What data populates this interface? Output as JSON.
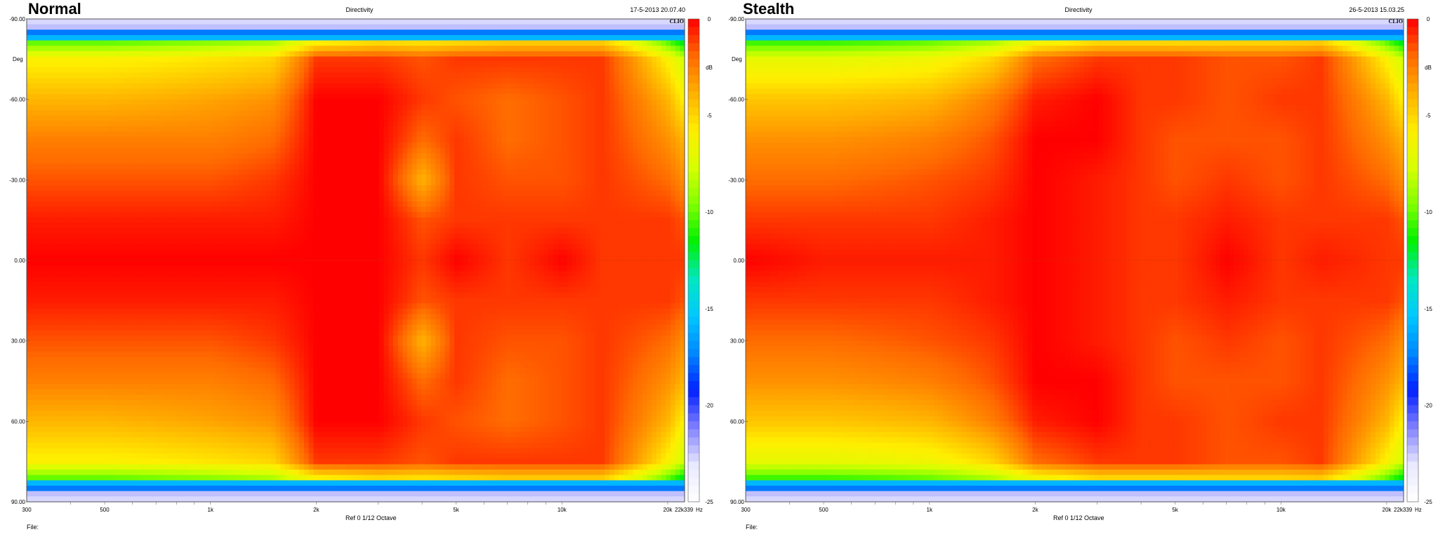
{
  "chart_data": [
    {
      "type": "heatmap",
      "panel_title": "Normal",
      "title": "Directivity",
      "timestamp": "17-5-2013 20.07.40",
      "logo": "CLIO",
      "x_tick_labels": [
        "300",
        "500",
        "1k",
        "2k",
        "5k",
        "10k",
        "20k",
        "22k339"
      ],
      "x_ticks_hz": [
        300,
        500,
        1000,
        2000,
        5000,
        10000,
        20000,
        22339
      ],
      "x_unit": "Hz",
      "xlim": [
        300,
        22339
      ],
      "x_scale": "log",
      "y_tick_labels": [
        "-90.00",
        "-60.00",
        "-30.00",
        "0.00",
        "30.00",
        "60.00",
        "90.00"
      ],
      "y_ticks": [
        -90,
        -60,
        -30,
        0,
        30,
        60,
        90
      ],
      "ylim": [
        -90,
        90
      ],
      "ylabel": "Deg",
      "colorbar": {
        "label": "dB",
        "ticks": [
          0,
          -5,
          -10,
          -15,
          -20,
          -25
        ],
        "tick_labels": [
          "0",
          "-5",
          "-10",
          "-15",
          "-20",
          "-25"
        ],
        "range": [
          -25,
          0
        ],
        "colors": [
          "#ff0000",
          "#ff6a00",
          "#ffb000",
          "#ffee00",
          "#d8ff00",
          "#80ff00",
          "#00f000",
          "#00e8c0",
          "#00c8ff",
          "#0088ff",
          "#0020ff",
          "#8080ff",
          "#e8e8ff",
          "#ffffff"
        ]
      },
      "bottom_label": "Ref 0  1/12 Octave",
      "file_label": "File:",
      "angles": [
        -90,
        -75,
        -60,
        -45,
        -30,
        -15,
        0,
        15,
        30,
        45,
        60,
        75,
        90
      ],
      "freqs_hz": [
        300,
        500,
        1000,
        1500,
        2000,
        3000,
        4000,
        5000,
        7000,
        10000,
        13000,
        20000,
        22339
      ],
      "values_db": [
        [
          -16,
          -16,
          -15,
          -14,
          -13,
          -11,
          -11,
          -11,
          -10,
          -10,
          -10,
          -16,
          -18
        ],
        [
          -6,
          -6,
          -5.5,
          -5,
          -1,
          -1,
          -1.5,
          -1,
          -1,
          -1,
          -1,
          -6,
          -8
        ],
        [
          -4,
          -4,
          -3.5,
          -3,
          0,
          0,
          -1,
          -1.5,
          -2,
          -1.5,
          -1,
          -4,
          -6
        ],
        [
          -2.5,
          -2.5,
          -2.5,
          -2,
          0,
          0,
          -2,
          -1,
          -2,
          -1.5,
          -1,
          -3,
          -4
        ],
        [
          -1.5,
          -1.5,
          -1.5,
          -1,
          0,
          0,
          -4,
          -1,
          -1.5,
          -1.5,
          -1,
          -2,
          -3
        ],
        [
          -0.5,
          -0.5,
          -0.5,
          -0.5,
          0,
          0,
          -1.5,
          -1,
          -1,
          -1,
          -1,
          -1,
          -1.5
        ],
        [
          0,
          0,
          0,
          0,
          0,
          0,
          -1,
          0,
          -1,
          0,
          -1,
          -1,
          -1
        ],
        [
          -0.5,
          -0.5,
          -0.5,
          -0.5,
          0,
          0,
          -1.5,
          -1,
          -1,
          -1,
          -1,
          -1,
          -1.5
        ],
        [
          -1.5,
          -1.5,
          -1.5,
          -1,
          0,
          0,
          -4,
          -1,
          -1.5,
          -1.5,
          -1,
          -2,
          -3
        ],
        [
          -2.5,
          -2.5,
          -2.5,
          -2,
          0,
          0,
          -2,
          -1,
          -2,
          -1.5,
          -1,
          -3,
          -4
        ],
        [
          -4,
          -4,
          -3.5,
          -3,
          0,
          0,
          -1,
          -1.5,
          -2,
          -1.5,
          -1,
          -4,
          -6
        ],
        [
          -6,
          -6,
          -5.5,
          -5,
          -1,
          -1,
          -1.5,
          -1,
          -1,
          -1,
          -1,
          -6,
          -8
        ],
        [
          -16,
          -16,
          -15,
          -14,
          -13,
          -11,
          -11,
          -11,
          -10,
          -10,
          -10,
          -16,
          -18
        ]
      ]
    },
    {
      "type": "heatmap",
      "panel_title": "Stealth",
      "title": "Directivity",
      "timestamp": "26-5-2013 15.03.25",
      "logo": "CLIO",
      "x_tick_labels": [
        "300",
        "500",
        "1k",
        "2k",
        "5k",
        "10k",
        "20k",
        "22k339"
      ],
      "x_ticks_hz": [
        300,
        500,
        1000,
        2000,
        5000,
        10000,
        20000,
        22339
      ],
      "x_unit": "Hz",
      "xlim": [
        300,
        22339
      ],
      "x_scale": "log",
      "y_tick_labels": [
        "-90.00",
        "-60.00",
        "-30.00",
        "0.00",
        "30.00",
        "60.00",
        "90.00"
      ],
      "y_ticks": [
        -90,
        -60,
        -30,
        0,
        30,
        60,
        90
      ],
      "ylim": [
        -90,
        90
      ],
      "ylabel": "Deg",
      "colorbar": {
        "label": "dB",
        "ticks": [
          0,
          -5,
          -10,
          -15,
          -20,
          -25
        ],
        "tick_labels": [
          "0",
          "-5",
          "-10",
          "-15",
          "-20",
          "-25"
        ],
        "range": [
          -25,
          0
        ],
        "colors": [
          "#ff0000",
          "#ff6a00",
          "#ffb000",
          "#ffee00",
          "#d8ff00",
          "#80ff00",
          "#00f000",
          "#00e8c0",
          "#00c8ff",
          "#0088ff",
          "#0020ff",
          "#8080ff",
          "#e8e8ff",
          "#ffffff"
        ]
      },
      "bottom_label": "Ref 0  1/12 Octave",
      "file_label": "File:",
      "angles": [
        -90,
        -75,
        -60,
        -45,
        -30,
        -15,
        0,
        15,
        30,
        45,
        60,
        75,
        90
      ],
      "freqs_hz": [
        300,
        500,
        1000,
        1500,
        2000,
        3000,
        4000,
        5000,
        7000,
        10000,
        13000,
        20000,
        22339
      ],
      "values_db": [
        [
          -16,
          -16,
          -15,
          -14,
          -13,
          -11,
          -11,
          -11,
          -10,
          -10,
          -10,
          -16,
          -18
        ],
        [
          -7,
          -7,
          -6.5,
          -5,
          -2,
          -1,
          -1,
          -1,
          -1.5,
          -1.5,
          -1,
          -6,
          -8
        ],
        [
          -4.5,
          -4.5,
          -4,
          -2.5,
          -0.5,
          0,
          -1,
          -1,
          -1.5,
          -1,
          -1,
          -4,
          -6
        ],
        [
          -3,
          -3,
          -2.5,
          -1.5,
          0,
          0,
          -1,
          -1.5,
          -1.5,
          -1.5,
          -1,
          -3,
          -4
        ],
        [
          -2,
          -2,
          -1.5,
          -1,
          0,
          -0.5,
          -1,
          -1.5,
          -1,
          -1.5,
          -1,
          -2,
          -3
        ],
        [
          -1,
          -1,
          -1,
          -0.5,
          0,
          -0.5,
          -1,
          -1,
          -0.5,
          -1,
          -1,
          -1,
          -1.5
        ],
        [
          0,
          -0.5,
          -0.5,
          -0.5,
          0,
          -0.5,
          -1,
          -1,
          0,
          -1,
          -0.5,
          -1,
          -1
        ],
        [
          -1,
          -1,
          -1,
          -0.5,
          0,
          -0.5,
          -1,
          -1,
          -0.5,
          -1,
          -1,
          -1,
          -1.5
        ],
        [
          -2,
          -2,
          -1.5,
          -1,
          0,
          -0.5,
          -1,
          -1.5,
          -1,
          -1.5,
          -1,
          -2,
          -3
        ],
        [
          -3,
          -3,
          -2.5,
          -1.5,
          0,
          0,
          -1,
          -1.5,
          -1.5,
          -1.5,
          -1,
          -3,
          -4
        ],
        [
          -4.5,
          -4.5,
          -4,
          -2.5,
          -0.5,
          0,
          -1,
          -1,
          -1.5,
          -1,
          -1,
          -4,
          -6
        ],
        [
          -7,
          -7,
          -6.5,
          -5,
          -2,
          -1,
          -1,
          -1,
          -1.5,
          -1.5,
          -1,
          -6,
          -8
        ],
        [
          -16,
          -16,
          -15,
          -14,
          -13,
          -11,
          -11,
          -11,
          -10,
          -10,
          -10,
          -16,
          -18
        ]
      ]
    }
  ]
}
